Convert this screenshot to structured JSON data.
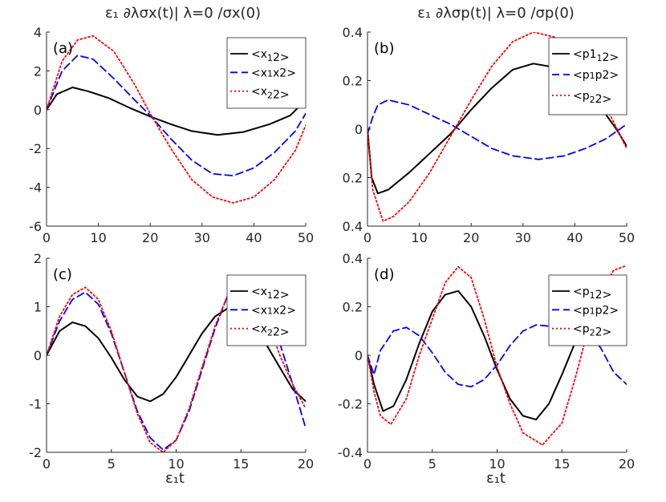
{
  "figure": {
    "col_titles": [
      "ε₁ ∂λσx(t)| λ=0 /σx(0)",
      "ε₁ ∂λσp(t)| λ=0 /σp(0)"
    ],
    "xlabel": "ε₁t"
  },
  "colors": {
    "black": "#000000",
    "blue": "#0000ff",
    "red": "#ff0000"
  },
  "chart_data": [
    {
      "type": "line",
      "panel_label": "(a)",
      "xlim": [
        0,
        50
      ],
      "ylim": [
        -6,
        4
      ],
      "xticks": [
        "0",
        "10",
        "20",
        "30",
        "40",
        "50"
      ],
      "yticks": [
        "-6",
        "-4",
        "-2",
        "0",
        "2",
        "4"
      ],
      "legend_placement": "top-right",
      "series": [
        {
          "name": "<x 1 2>",
          "color": "#000000",
          "dash": "solid",
          "points": [
            [
              0,
              0
            ],
            [
              2,
              0.8
            ],
            [
              5,
              1.15
            ],
            [
              8,
              0.95
            ],
            [
              12,
              0.6
            ],
            [
              16,
              0.1
            ],
            [
              20,
              -0.35
            ],
            [
              24,
              -0.75
            ],
            [
              28,
              -1.1
            ],
            [
              33,
              -1.3
            ],
            [
              38,
              -1.15
            ],
            [
              43,
              -0.75
            ],
            [
              47,
              -0.3
            ],
            [
              48.5,
              0.1
            ],
            [
              50,
              0.15
            ]
          ]
        },
        {
          "name": "<x 1 x2>",
          "color": "#0000ff",
          "dash": "dashed",
          "points": [
            [
              0,
              0
            ],
            [
              3,
              2.0
            ],
            [
              6,
              2.8
            ],
            [
              9,
              2.6
            ],
            [
              13,
              1.6
            ],
            [
              17,
              0.5
            ],
            [
              20,
              -0.3
            ],
            [
              24,
              -1.5
            ],
            [
              28,
              -2.6
            ],
            [
              32,
              -3.3
            ],
            [
              36,
              -3.4
            ],
            [
              40,
              -3.0
            ],
            [
              44,
              -2.2
            ],
            [
              48,
              -1.1
            ],
            [
              50,
              -0.2
            ]
          ]
        },
        {
          "name": "<x 2 2>",
          "color": "#ff0000",
          "dash": "dotted",
          "points": [
            [
              0,
              0
            ],
            [
              3,
              2.5
            ],
            [
              6,
              3.6
            ],
            [
              9,
              3.8
            ],
            [
              13,
              3.0
            ],
            [
              17,
              1.3
            ],
            [
              20,
              -0.2
            ],
            [
              24,
              -2.0
            ],
            [
              28,
              -3.6
            ],
            [
              32,
              -4.5
            ],
            [
              36,
              -4.8
            ],
            [
              40,
              -4.5
            ],
            [
              44,
              -3.6
            ],
            [
              48,
              -2.1
            ],
            [
              50,
              -0.8
            ]
          ]
        }
      ]
    },
    {
      "type": "line",
      "panel_label": "(b)",
      "xlim": [
        0,
        50
      ],
      "ylim": [
        -0.4,
        0.4
      ],
      "xticks": [
        "0",
        "10",
        "20",
        "30",
        "40",
        "50"
      ],
      "yticks": [
        "0.4",
        "0.2",
        "0",
        "0.2",
        "0.4"
      ],
      "legend_placement": "top-right",
      "series": [
        {
          "name": "<p1 1 2>",
          "color": "#000000",
          "dash": "solid",
          "points": [
            [
              0,
              0
            ],
            [
              0.8,
              -0.2
            ],
            [
              2,
              -0.265
            ],
            [
              4,
              -0.25
            ],
            [
              8,
              -0.18
            ],
            [
              12,
              -0.1
            ],
            [
              16,
              -0.02
            ],
            [
              20,
              0.08
            ],
            [
              24,
              0.17
            ],
            [
              28,
              0.245
            ],
            [
              32,
              0.27
            ],
            [
              36,
              0.255
            ],
            [
              40,
              0.2
            ],
            [
              44,
              0.12
            ],
            [
              48,
              0.0
            ],
            [
              50,
              -0.07
            ]
          ]
        },
        {
          "name": "<p 1 p2>",
          "color": "#0000ff",
          "dash": "dashed",
          "points": [
            [
              0,
              -0.02
            ],
            [
              1,
              0.05
            ],
            [
              2,
              0.1
            ],
            [
              4,
              0.12
            ],
            [
              8,
              0.1
            ],
            [
              12,
              0.06
            ],
            [
              16,
              0.02
            ],
            [
              20,
              -0.03
            ],
            [
              24,
              -0.08
            ],
            [
              28,
              -0.11
            ],
            [
              33,
              -0.125
            ],
            [
              38,
              -0.11
            ],
            [
              42,
              -0.08
            ],
            [
              46,
              -0.04
            ],
            [
              50,
              0.02
            ]
          ]
        },
        {
          "name": "<p 2 2>",
          "color": "#ff0000",
          "dash": "dotted",
          "points": [
            [
              0,
              0
            ],
            [
              1,
              -0.25
            ],
            [
              3,
              -0.38
            ],
            [
              5,
              -0.36
            ],
            [
              8,
              -0.3
            ],
            [
              12,
              -0.18
            ],
            [
              16,
              -0.03
            ],
            [
              20,
              0.12
            ],
            [
              24,
              0.26
            ],
            [
              28,
              0.36
            ],
            [
              32,
              0.4
            ],
            [
              36,
              0.38
            ],
            [
              40,
              0.3
            ],
            [
              44,
              0.16
            ],
            [
              47,
              0.05
            ],
            [
              50,
              -0.08
            ]
          ]
        }
      ]
    },
    {
      "type": "line",
      "panel_label": "(c)",
      "xlim": [
        0,
        20
      ],
      "ylim": [
        -2,
        2
      ],
      "xticks": [
        "0",
        "5",
        "10",
        "15",
        "20"
      ],
      "yticks": [
        "-2",
        "-1",
        "0",
        "1",
        "2"
      ],
      "legend_placement": "top-right",
      "series": [
        {
          "name": "<x 1 2>",
          "color": "#000000",
          "dash": "solid",
          "points": [
            [
              0,
              0
            ],
            [
              1,
              0.5
            ],
            [
              2,
              0.68
            ],
            [
              3,
              0.6
            ],
            [
              4,
              0.35
            ],
            [
              5,
              -0.05
            ],
            [
              6,
              -0.5
            ],
            [
              7,
              -0.85
            ],
            [
              8,
              -0.95
            ],
            [
              9,
              -0.8
            ],
            [
              10,
              -0.45
            ],
            [
              11,
              0.0
            ],
            [
              12,
              0.45
            ],
            [
              13,
              0.8
            ],
            [
              14,
              0.97
            ],
            [
              15,
              0.9
            ],
            [
              16,
              0.6
            ],
            [
              17,
              0.2
            ],
            [
              18,
              -0.25
            ],
            [
              19,
              -0.7
            ],
            [
              20,
              -0.95
            ]
          ]
        },
        {
          "name": "<x 1 x2>",
          "color": "#0000ff",
          "dash": "dashed",
          "points": [
            [
              0,
              0
            ],
            [
              1,
              0.7
            ],
            [
              2,
              1.15
            ],
            [
              3,
              1.3
            ],
            [
              4,
              1.05
            ],
            [
              5,
              0.45
            ],
            [
              6,
              -0.35
            ],
            [
              7,
              -1.15
            ],
            [
              8,
              -1.7
            ],
            [
              9,
              -1.95
            ],
            [
              10,
              -1.75
            ],
            [
              11,
              -1.15
            ],
            [
              12,
              -0.3
            ],
            [
              13,
              0.55
            ],
            [
              14,
              1.25
            ],
            [
              15,
              1.6
            ],
            [
              16,
              1.5
            ],
            [
              17,
              1.0
            ],
            [
              18,
              0.25
            ],
            [
              19,
              -0.6
            ],
            [
              20,
              -1.5
            ]
          ]
        },
        {
          "name": "<x 2 2>",
          "color": "#ff0000",
          "dash": "dotted",
          "points": [
            [
              0,
              0
            ],
            [
              1,
              0.8
            ],
            [
              2,
              1.25
            ],
            [
              3,
              1.4
            ],
            [
              4,
              1.15
            ],
            [
              5,
              0.5
            ],
            [
              6,
              -0.35
            ],
            [
              7,
              -1.2
            ],
            [
              8,
              -1.8
            ],
            [
              9,
              -2.0
            ],
            [
              10,
              -1.75
            ],
            [
              11,
              -1.1
            ],
            [
              12,
              -0.25
            ],
            [
              13,
              0.6
            ],
            [
              14,
              1.25
            ],
            [
              15,
              1.5
            ],
            [
              16,
              1.3
            ],
            [
              17,
              0.75
            ],
            [
              18,
              0.0
            ],
            [
              19,
              -0.6
            ],
            [
              20,
              -1.1
            ]
          ]
        }
      ]
    },
    {
      "type": "line",
      "panel_label": "(d)",
      "xlim": [
        0,
        20
      ],
      "ylim": [
        -0.4,
        0.4
      ],
      "xticks": [
        "0",
        "5",
        "10",
        "15",
        "20"
      ],
      "yticks": [
        "-0.4",
        "-0.2",
        "0",
        "0.2",
        "0.4"
      ],
      "legend_placement": "top-right",
      "series": [
        {
          "name": "<p 1 2>",
          "color": "#000000",
          "dash": "solid",
          "points": [
            [
              0,
              0
            ],
            [
              0.5,
              -0.12
            ],
            [
              1.2,
              -0.23
            ],
            [
              2,
              -0.21
            ],
            [
              3,
              -0.1
            ],
            [
              4,
              0.05
            ],
            [
              5,
              0.18
            ],
            [
              6,
              0.25
            ],
            [
              7,
              0.265
            ],
            [
              8,
              0.2
            ],
            [
              9,
              0.08
            ],
            [
              10,
              -0.06
            ],
            [
              11,
              -0.18
            ],
            [
              12,
              -0.25
            ],
            [
              13,
              -0.265
            ],
            [
              14,
              -0.2
            ],
            [
              15,
              -0.08
            ],
            [
              16,
              0.05
            ],
            [
              17,
              0.16
            ],
            [
              18,
              0.24
            ],
            [
              19,
              0.27
            ],
            [
              20,
              0.25
            ]
          ]
        },
        {
          "name": "<p 1 p2>",
          "color": "#0000ff",
          "dash": "dashed",
          "points": [
            [
              0,
              0
            ],
            [
              0.5,
              -0.08
            ],
            [
              1,
              0.02
            ],
            [
              2,
              0.1
            ],
            [
              3,
              0.115
            ],
            [
              4,
              0.08
            ],
            [
              5,
              0.01
            ],
            [
              6,
              -0.07
            ],
            [
              7,
              -0.12
            ],
            [
              8,
              -0.13
            ],
            [
              9,
              -0.1
            ],
            [
              10,
              -0.04
            ],
            [
              11,
              0.04
            ],
            [
              12,
              0.1
            ],
            [
              13,
              0.125
            ],
            [
              14,
              0.12
            ],
            [
              15,
              0.12
            ],
            [
              16,
              0.13
            ],
            [
              17,
              0.1
            ],
            [
              18,
              0.03
            ],
            [
              19,
              -0.07
            ],
            [
              20,
              -0.12
            ]
          ]
        },
        {
          "name": "<p 2 2>",
          "color": "#ff0000",
          "dash": "dotted",
          "points": [
            [
              0,
              0
            ],
            [
              0.5,
              -0.15
            ],
            [
              1,
              -0.25
            ],
            [
              1.8,
              -0.285
            ],
            [
              3,
              -0.18
            ],
            [
              4,
              0.0
            ],
            [
              5,
              0.15
            ],
            [
              6,
              0.3
            ],
            [
              7,
              0.365
            ],
            [
              8,
              0.32
            ],
            [
              9,
              0.15
            ],
            [
              10,
              -0.05
            ],
            [
              11,
              -0.2
            ],
            [
              12,
              -0.32
            ],
            [
              13.5,
              -0.37
            ],
            [
              15,
              -0.28
            ],
            [
              16,
              -0.1
            ],
            [
              17,
              0.1
            ],
            [
              18,
              0.26
            ],
            [
              19,
              0.35
            ],
            [
              20,
              0.37
            ]
          ]
        }
      ]
    }
  ]
}
